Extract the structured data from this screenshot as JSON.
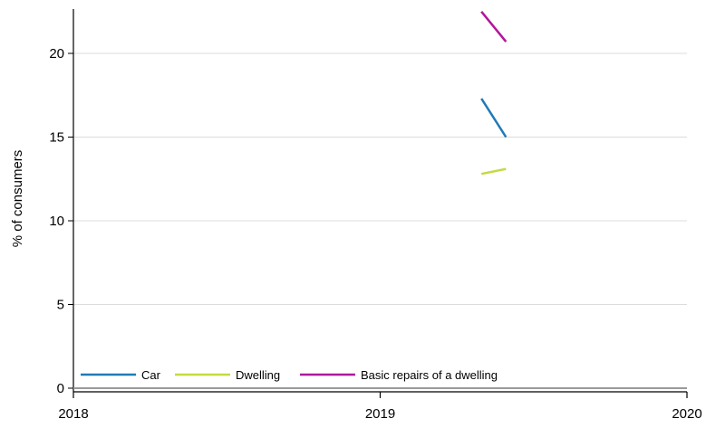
{
  "chart_data": {
    "type": "line",
    "title": "",
    "xlabel": "",
    "ylabel": "% of consumers",
    "xlim": [
      2018,
      2020
    ],
    "ylim": [
      0,
      22.5
    ],
    "x_ticks": [
      "2018",
      "2019",
      "2020"
    ],
    "y_ticks": [
      "0",
      "5",
      "10",
      "15",
      "20"
    ],
    "grid": "horizontal",
    "legend_position": "bottom-left-inside",
    "series": [
      {
        "name": "Car",
        "color": "#1f7bb6",
        "x": [
          2019.33,
          2019.41
        ],
        "y": [
          17.3,
          15.0
        ]
      },
      {
        "name": "Dwelling",
        "color": "#c5d941",
        "x": [
          2019.33,
          2019.41
        ],
        "y": [
          12.8,
          13.1
        ]
      },
      {
        "name": "Basic repairs of a dwelling",
        "color": "#b0179a",
        "x": [
          2019.33,
          2019.41
        ],
        "y": [
          22.5,
          20.7
        ]
      }
    ]
  }
}
